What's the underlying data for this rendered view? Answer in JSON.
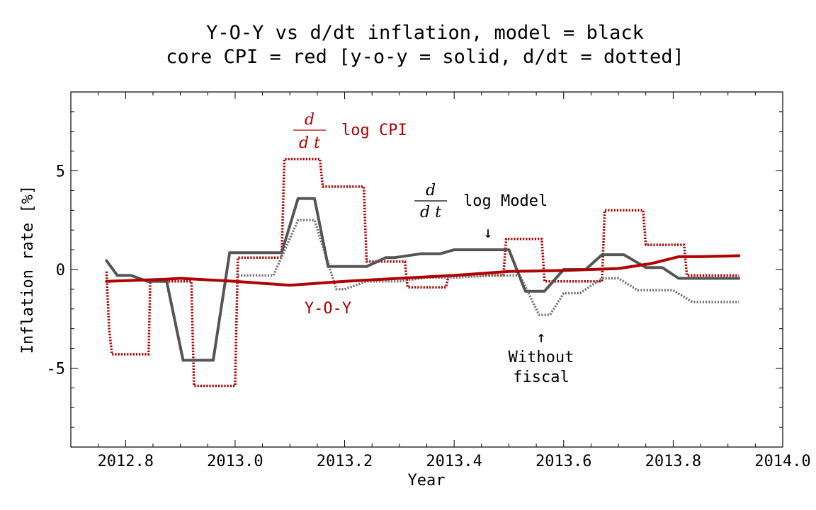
{
  "colors": {
    "model": "#555555",
    "model_dotted": "#777777",
    "cpi": "#b00000",
    "axis": "#000000"
  },
  "chart_data": {
    "type": "line",
    "title": [
      "Y-O-Y vs d/dt inflation, model = black",
      "core CPI = red [y-o-y = solid, d/dt = dotted]"
    ],
    "xlabel": "Year",
    "ylabel": "Inflation rate [%]",
    "xlim": [
      2012.7,
      2014.0
    ],
    "ylim": [
      -9,
      9
    ],
    "xticks": [
      2012.8,
      2013.0,
      2013.2,
      2013.4,
      2013.6,
      2013.8,
      2014.0
    ],
    "xtick_labels": [
      "2012.8",
      "2013.0",
      "2013.2",
      "2013.4",
      "2013.6",
      "2013.8",
      "2014.0"
    ],
    "yticks": [
      -5,
      0,
      5
    ],
    "ytick_labels": [
      "-5",
      "0",
      "5"
    ],
    "grid": false,
    "series": [
      {
        "key": "cpi_ddt",
        "style": "dotted",
        "color": "#b00000",
        "x": [
          2012.765,
          2012.77,
          2012.775,
          2012.842,
          2012.845,
          2012.92,
          2012.925,
          2013.0,
          2013.005,
          2013.085,
          2013.09,
          2013.155,
          2013.16,
          2013.235,
          2013.24,
          2013.31,
          2013.315,
          2013.385,
          2013.39,
          2013.45,
          2013.455,
          2013.49,
          2013.495,
          2013.56,
          2013.565,
          2013.64,
          2013.645,
          2013.67,
          2013.675,
          2013.745,
          2013.75,
          2013.82,
          2013.825,
          2013.92
        ],
        "y": [
          -0.1,
          -3.0,
          -4.3,
          -4.3,
          -0.6,
          -0.6,
          -5.9,
          -5.9,
          0.6,
          0.6,
          5.6,
          5.6,
          4.2,
          4.2,
          0.4,
          0.4,
          -0.9,
          -0.9,
          -0.3,
          -0.3,
          -0.3,
          -0.3,
          1.55,
          1.55,
          -0.6,
          -0.6,
          -0.6,
          -0.6,
          3.0,
          3.0,
          1.25,
          1.25,
          -0.3,
          -0.3
        ]
      },
      {
        "key": "model_ddt",
        "style": "dotted",
        "color": "#777777",
        "x": [
          2013.005,
          2013.07,
          2013.115,
          2013.145,
          2013.185,
          2013.2,
          2013.24,
          2013.3,
          2013.35,
          2013.405,
          2013.47,
          2013.52,
          2013.555,
          2013.575,
          2013.6,
          2013.63,
          2013.67,
          2013.7,
          2013.735,
          2013.775,
          2013.8,
          2013.835,
          2013.87,
          2013.92
        ],
        "y": [
          -0.3,
          -0.3,
          2.5,
          2.5,
          -1.0,
          -1.0,
          -0.6,
          -0.6,
          -0.4,
          -0.4,
          -0.3,
          -0.3,
          -2.3,
          -2.3,
          -1.2,
          -1.2,
          -0.45,
          -0.45,
          -1.05,
          -1.05,
          -1.05,
          -1.65,
          -1.65,
          -1.65
        ]
      },
      {
        "key": "model_yoy",
        "style": "solid",
        "color": "#555555",
        "x": [
          2012.765,
          2012.785,
          2012.81,
          2012.84,
          2012.875,
          2012.905,
          2012.935,
          2012.96,
          2012.99,
          2013.085,
          2013.115,
          2013.145,
          2013.17,
          2013.205,
          2013.24,
          2013.275,
          2013.29,
          2013.34,
          2013.375,
          2013.4,
          2013.43,
          2013.46,
          2013.5,
          2013.53,
          2013.565,
          2013.6,
          2013.64,
          2013.67,
          2013.71,
          2013.75,
          2013.78,
          2013.81,
          2013.92
        ],
        "y": [
          0.45,
          -0.3,
          -0.3,
          -0.6,
          -0.6,
          -4.6,
          -4.6,
          -4.6,
          0.85,
          0.85,
          3.6,
          3.6,
          0.15,
          0.15,
          0.15,
          0.6,
          0.6,
          0.8,
          0.8,
          1.0,
          1.0,
          1.0,
          1.0,
          -1.1,
          -1.1,
          0.0,
          0.0,
          0.75,
          0.75,
          0.1,
          0.1,
          -0.45,
          -0.45
        ]
      },
      {
        "key": "cpi_yoy",
        "style": "solid",
        "color": "#b00000",
        "x": [
          2012.765,
          2012.82,
          2012.87,
          2012.9,
          2013.0,
          2013.1,
          2013.2,
          2013.3,
          2013.4,
          2013.5,
          2013.6,
          2013.7,
          2013.76,
          2013.81,
          2013.85,
          2013.92
        ],
        "y": [
          -0.6,
          -0.55,
          -0.5,
          -0.45,
          -0.6,
          -0.8,
          -0.6,
          -0.45,
          -0.3,
          -0.1,
          -0.05,
          0.05,
          0.3,
          0.65,
          0.65,
          0.7
        ]
      }
    ],
    "annotations": {
      "cpi_frac_num": "d",
      "cpi_frac_den": "d t",
      "cpi_label": "log CPI",
      "model_frac_num": "d",
      "model_frac_den": "d t",
      "model_label": "log Model",
      "model_arrow": "↓",
      "yoy_label": "Y-O-Y",
      "fiscal_arrow": "↑",
      "fiscal_line1": "Without",
      "fiscal_line2": "fiscal"
    }
  }
}
